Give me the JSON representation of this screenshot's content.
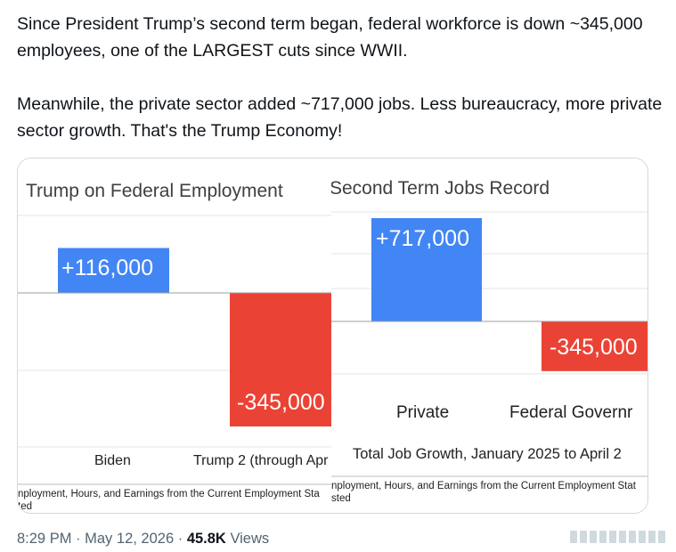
{
  "tweet": {
    "line1": "Since President Trump’s second term began, federal workforce is down ~345,000 employees, one of the LARGEST cuts since WWII.",
    "line2": "Meanwhile, the private sector added ~717,000 jobs. Less bureaucracy, more private sector growth. That's the Trump Economy!"
  },
  "chart_data": [
    {
      "type": "bar",
      "title": "Trump on Federal Employment",
      "categories": [
        "Biden",
        "Trump 2 (through Apr"
      ],
      "values": [
        116000,
        -345000
      ],
      "labels": [
        "+116,000",
        "-345,000"
      ],
      "colors": [
        "#4285f4",
        "#ea4335"
      ],
      "source": "nployment, Hours, and Earnings from the Current Employment Sta",
      "source2": "ted"
    },
    {
      "type": "bar",
      "title": "Second Term Jobs Record",
      "categories": [
        "Private",
        "Federal Governr"
      ],
      "values": [
        717000,
        -345000
      ],
      "labels": [
        "+717,000",
        "-345,000"
      ],
      "colors": [
        "#4285f4",
        "#ea4335"
      ],
      "xlabel": "Total Job Growth, January 2025 to April 2",
      "source": "nployment, Hours, and Earnings from the Current Employment Stat",
      "source2": "sted"
    }
  ],
  "meta": {
    "time": "8:29 PM",
    "sep1": "·",
    "date": "May 12, 2026",
    "sep2": "·",
    "views_count": "45.8K",
    "views_label": "Views"
  },
  "icons": {
    "share": "share-icon"
  }
}
